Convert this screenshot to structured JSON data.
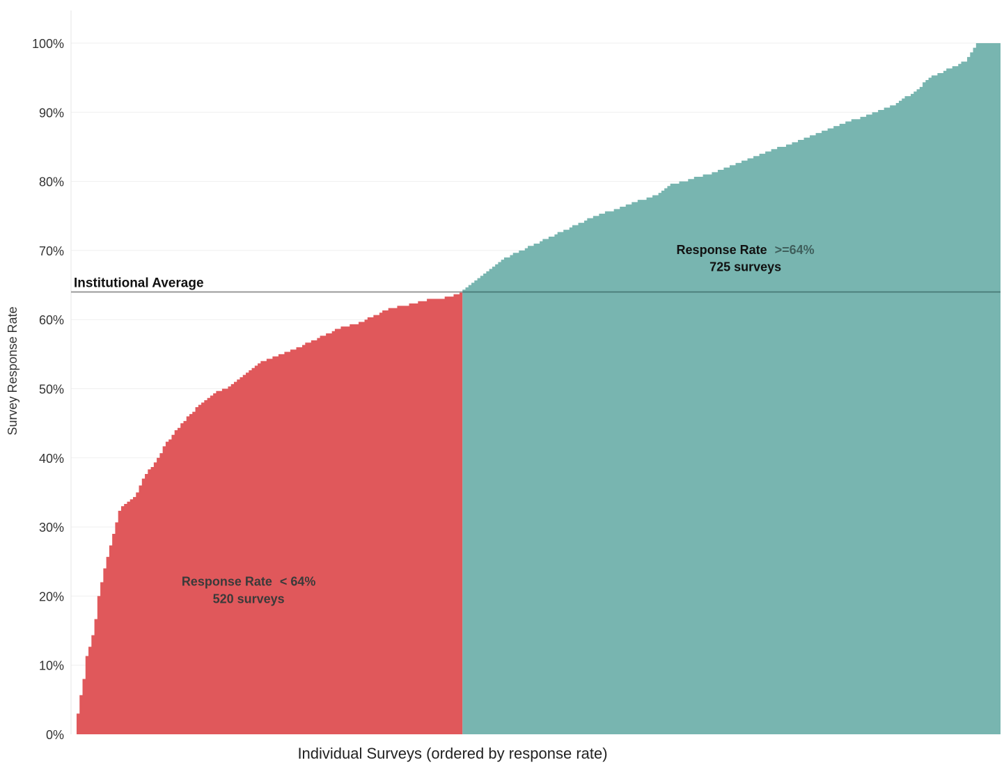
{
  "chart_data": {
    "type": "area",
    "title": "",
    "xlabel": "Individual Surveys (ordered by response rate)",
    "ylabel": "Survey Response Rate",
    "ylim": [
      0,
      100
    ],
    "y_ticks": [
      "0%",
      "10%",
      "20%",
      "30%",
      "40%",
      "50%",
      "60%",
      "70%",
      "80%",
      "90%",
      "100%"
    ],
    "grid": true,
    "reference_line": {
      "label": "Institutional Average",
      "value": 64
    },
    "series": [
      {
        "name": "Response Rate < 64%",
        "count": 520,
        "color": "#e0585b",
        "x": [
          0,
          5,
          10,
          15,
          20,
          25,
          30,
          40,
          45,
          60,
          70,
          80,
          90,
          110,
          120,
          135,
          150,
          160,
          170,
          180,
          200,
          225,
          250,
          275,
          300,
          320,
          340,
          360,
          380,
          400,
          420,
          440,
          460,
          480,
          500,
          510,
          519
        ],
        "values": [
          1.5,
          5,
          8,
          12,
          13,
          16,
          20,
          25,
          27,
          33,
          33.5,
          34.5,
          37,
          40,
          42,
          44,
          46,
          47,
          48,
          49,
          50,
          52,
          54,
          55,
          56,
          57,
          58,
          59,
          59.5,
          60.5,
          61.5,
          62,
          62.5,
          63,
          63.2,
          63.5,
          63.9
        ]
      },
      {
        "name": "Response Rate >=64%",
        "count": 725,
        "color": "#78b5b0",
        "x": [
          520,
          540,
          560,
          580,
          620,
          660,
          700,
          740,
          780,
          800,
          850,
          900,
          950,
          1000,
          1050,
          1100,
          1130,
          1150,
          1180,
          1200,
          1215,
          1230,
          1244
        ],
        "values": [
          64.3,
          66,
          67.5,
          69,
          71,
          73,
          75,
          76.5,
          78,
          79.5,
          81,
          83,
          85,
          87,
          89,
          91,
          93,
          95,
          96.5,
          97.5,
          100,
          100,
          100
        ]
      }
    ],
    "annotations": [
      {
        "series": "Response Rate < 64%",
        "line1_prefix": "Response Rate",
        "line1_highlight": "< 64%",
        "line2": "520 surveys"
      },
      {
        "series": "Response Rate >=64%",
        "line1_prefix": "Response Rate",
        "line1_highlight": ">=64%",
        "line2": "725 surveys"
      }
    ]
  }
}
